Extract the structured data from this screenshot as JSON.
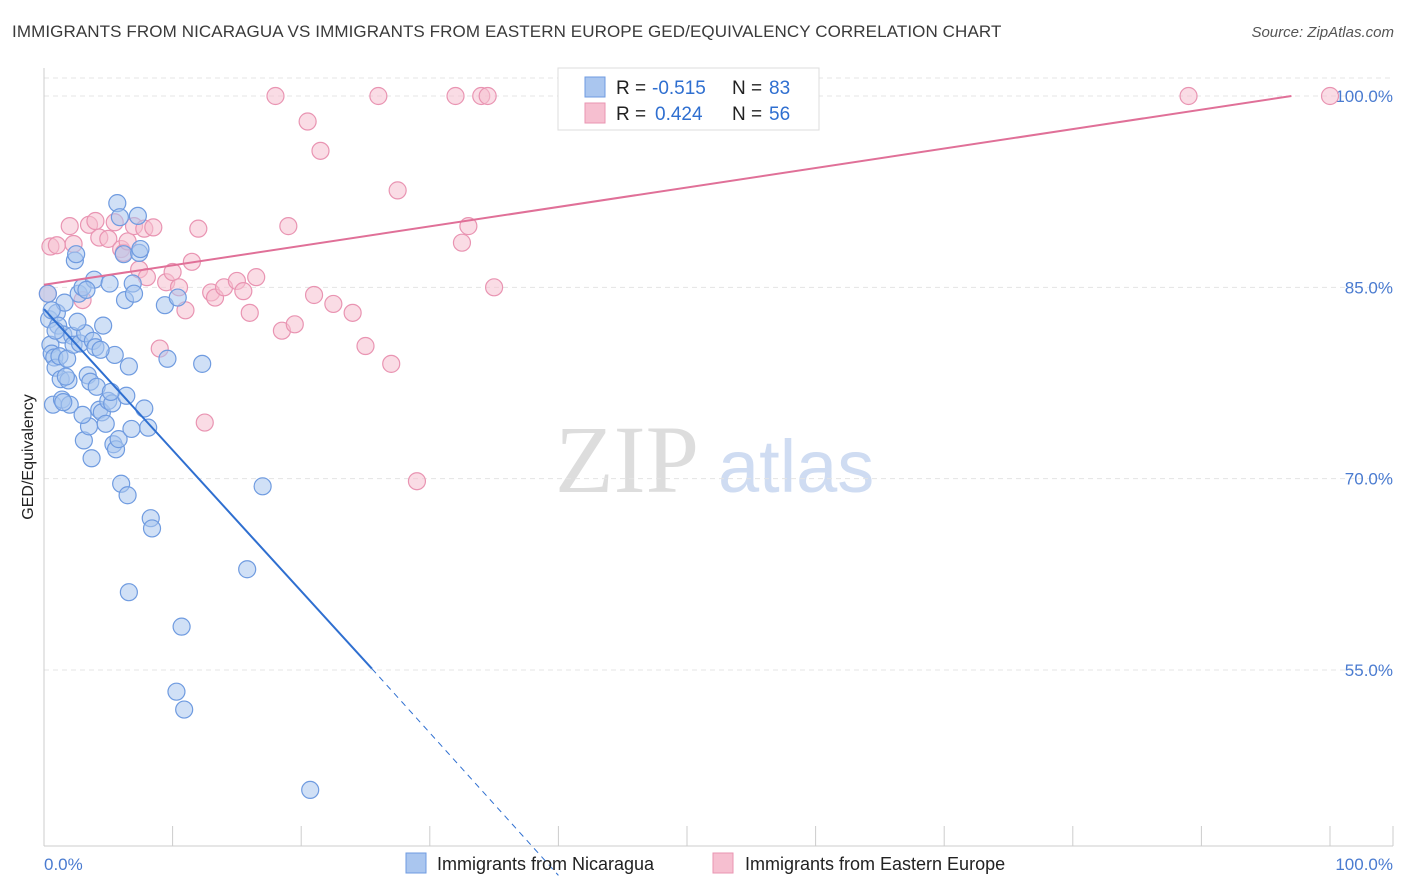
{
  "title": "IMMIGRANTS FROM NICARAGUA VS IMMIGRANTS FROM EASTERN EUROPE GED/EQUIVALENCY CORRELATION CHART",
  "source": "Source: ZipAtlas.com",
  "watermark": {
    "zip": "ZIP",
    "atlas": "atlas"
  },
  "colors": {
    "blue": "#2f6fd0",
    "blue_fill": "#aac6ef",
    "blue_stroke": "#6f9be0",
    "pink": "#e07098",
    "pink_fill": "#f6bfd0",
    "pink_stroke": "#e994b2",
    "grid": "#e4e4e4",
    "axis": "#cccccc",
    "tick_label": "#4a7bd0"
  },
  "legend": {
    "r_label": "R =",
    "n_label": "N =",
    "series1": {
      "r": "-0.515",
      "n": "83"
    },
    "series2": {
      "r": "0.424",
      "n": "56"
    }
  },
  "chart_data": {
    "type": "scatter",
    "title": "IMMIGRANTS FROM NICARAGUA VS IMMIGRANTS FROM EASTERN EUROPE GED/EQUIVALENCY CORRELATION CHART",
    "xlabel": "",
    "ylabel": "GED/Equivalency",
    "xlim": [
      0,
      100
    ],
    "ylim": [
      40,
      101.5
    ],
    "y_ticks": [
      55,
      70,
      85,
      100
    ],
    "y_tick_labels": [
      "55.0%",
      "70.0%",
      "85.0%",
      "100.0%"
    ],
    "x_tick_labels": [
      "0.0%",
      "100.0%"
    ],
    "x_minor_ticks": [
      0,
      10,
      20,
      30,
      40,
      50,
      60,
      70,
      80,
      90,
      100
    ],
    "grid": true,
    "series": [
      {
        "name": "Immigrants from Nicaragua",
        "color": "#2f6fd0",
        "points": [
          [
            0.3,
            84.5
          ],
          [
            0.4,
            82.5
          ],
          [
            0.5,
            80.5
          ],
          [
            0.6,
            79.8
          ],
          [
            0.7,
            75.8
          ],
          [
            0.8,
            79.5
          ],
          [
            0.9,
            78.7
          ],
          [
            1.0,
            83.0
          ],
          [
            1.1,
            82.0
          ],
          [
            1.2,
            79.6
          ],
          [
            1.3,
            77.8
          ],
          [
            1.4,
            76.2
          ],
          [
            1.5,
            81.3
          ],
          [
            1.6,
            83.8
          ],
          [
            1.8,
            79.4
          ],
          [
            1.9,
            77.7
          ],
          [
            2.0,
            75.8
          ],
          [
            2.2,
            81.2
          ],
          [
            2.3,
            80.5
          ],
          [
            2.4,
            87.1
          ],
          [
            2.5,
            87.6
          ],
          [
            2.7,
            84.5
          ],
          [
            2.8,
            80.6
          ],
          [
            3.0,
            85.0
          ],
          [
            3.1,
            73.0
          ],
          [
            3.2,
            81.4
          ],
          [
            3.4,
            78.1
          ],
          [
            3.5,
            74.1
          ],
          [
            3.6,
            77.6
          ],
          [
            3.7,
            71.6
          ],
          [
            3.8,
            80.8
          ],
          [
            3.9,
            85.6
          ],
          [
            4.0,
            80.3
          ],
          [
            4.1,
            77.2
          ],
          [
            4.3,
            75.4
          ],
          [
            4.5,
            75.2
          ],
          [
            4.6,
            82.0
          ],
          [
            4.8,
            74.3
          ],
          [
            5.0,
            76.1
          ],
          [
            5.1,
            85.3
          ],
          [
            5.3,
            75.9
          ],
          [
            5.4,
            72.7
          ],
          [
            5.5,
            79.7
          ],
          [
            5.6,
            72.3
          ],
          [
            5.7,
            91.6
          ],
          [
            5.8,
            73.1
          ],
          [
            5.9,
            90.5
          ],
          [
            6.0,
            69.6
          ],
          [
            6.2,
            87.6
          ],
          [
            6.3,
            84.0
          ],
          [
            6.4,
            76.5
          ],
          [
            6.5,
            68.7
          ],
          [
            6.6,
            78.8
          ],
          [
            6.9,
            85.3
          ],
          [
            7.0,
            84.5
          ],
          [
            7.3,
            90.6
          ],
          [
            7.4,
            87.7
          ],
          [
            7.5,
            88.0
          ],
          [
            7.8,
            75.5
          ],
          [
            8.1,
            74.0
          ],
          [
            8.3,
            66.9
          ],
          [
            8.4,
            66.1
          ],
          [
            9.4,
            83.6
          ],
          [
            9.6,
            79.4
          ],
          [
            10.4,
            84.2
          ],
          [
            10.7,
            58.4
          ],
          [
            10.9,
            51.9
          ],
          [
            12.3,
            79.0
          ],
          [
            6.6,
            61.1
          ],
          [
            10.3,
            53.3
          ],
          [
            15.8,
            62.9
          ],
          [
            17.0,
            69.4
          ],
          [
            20.7,
            45.6
          ],
          [
            1.7,
            78.0
          ],
          [
            2.6,
            82.3
          ],
          [
            3.3,
            84.8
          ],
          [
            4.4,
            80.1
          ],
          [
            5.2,
            76.8
          ],
          [
            0.9,
            81.6
          ],
          [
            1.5,
            76.0
          ],
          [
            6.8,
            73.9
          ],
          [
            3.0,
            75.0
          ],
          [
            0.6,
            83.2
          ]
        ],
        "trend": {
          "x0": 0,
          "y0": 83.3,
          "x1": 25.5,
          "y1": 55.1,
          "dash_to_x": 40,
          "dash_to_y": 38.9
        }
      },
      {
        "name": "Immigrants from Eastern Europe",
        "color": "#e07098",
        "points": [
          [
            0.3,
            84.5
          ],
          [
            0.5,
            88.2
          ],
          [
            1.0,
            88.3
          ],
          [
            2.0,
            89.8
          ],
          [
            2.3,
            88.4
          ],
          [
            3.0,
            84.0
          ],
          [
            3.5,
            89.9
          ],
          [
            4.0,
            90.2
          ],
          [
            4.3,
            88.9
          ],
          [
            5.0,
            88.8
          ],
          [
            5.5,
            90.1
          ],
          [
            6.0,
            88.0
          ],
          [
            6.2,
            87.7
          ],
          [
            6.5,
            88.6
          ],
          [
            7.0,
            89.8
          ],
          [
            7.4,
            86.4
          ],
          [
            7.8,
            89.6
          ],
          [
            8.0,
            85.8
          ],
          [
            8.5,
            89.7
          ],
          [
            9.0,
            80.2
          ],
          [
            9.5,
            85.4
          ],
          [
            10.0,
            86.2
          ],
          [
            10.5,
            85.0
          ],
          [
            11.0,
            83.2
          ],
          [
            11.5,
            87.0
          ],
          [
            12.0,
            89.6
          ],
          [
            12.5,
            74.4
          ],
          [
            13.0,
            84.6
          ],
          [
            13.3,
            84.2
          ],
          [
            14.0,
            85.0
          ],
          [
            15.0,
            85.5
          ],
          [
            15.5,
            84.7
          ],
          [
            16.0,
            83.0
          ],
          [
            16.5,
            85.8
          ],
          [
            18.0,
            100.0
          ],
          [
            18.5,
            81.6
          ],
          [
            19.0,
            89.8
          ],
          [
            19.5,
            82.1
          ],
          [
            20.5,
            98.0
          ],
          [
            21.0,
            84.4
          ],
          [
            21.5,
            95.7
          ],
          [
            22.5,
            83.7
          ],
          [
            24.0,
            83.0
          ],
          [
            25.0,
            80.4
          ],
          [
            26.0,
            100.0
          ],
          [
            27.0,
            79.0
          ],
          [
            27.5,
            92.6
          ],
          [
            29.0,
            69.8
          ],
          [
            32.0,
            100.0
          ],
          [
            32.5,
            88.5
          ],
          [
            33.0,
            89.8
          ],
          [
            34.0,
            100.0
          ],
          [
            34.5,
            100.0
          ],
          [
            35.0,
            85.0
          ],
          [
            89.0,
            100.0
          ],
          [
            100.0,
            100.0
          ]
        ],
        "trend": {
          "x0": 0,
          "y0": 85.2,
          "x1": 97,
          "y1": 100.0
        }
      }
    ]
  },
  "bottom_legend": {
    "series1_label": "Immigrants from Nicaragua",
    "series2_label": "Immigrants from Eastern Europe"
  }
}
